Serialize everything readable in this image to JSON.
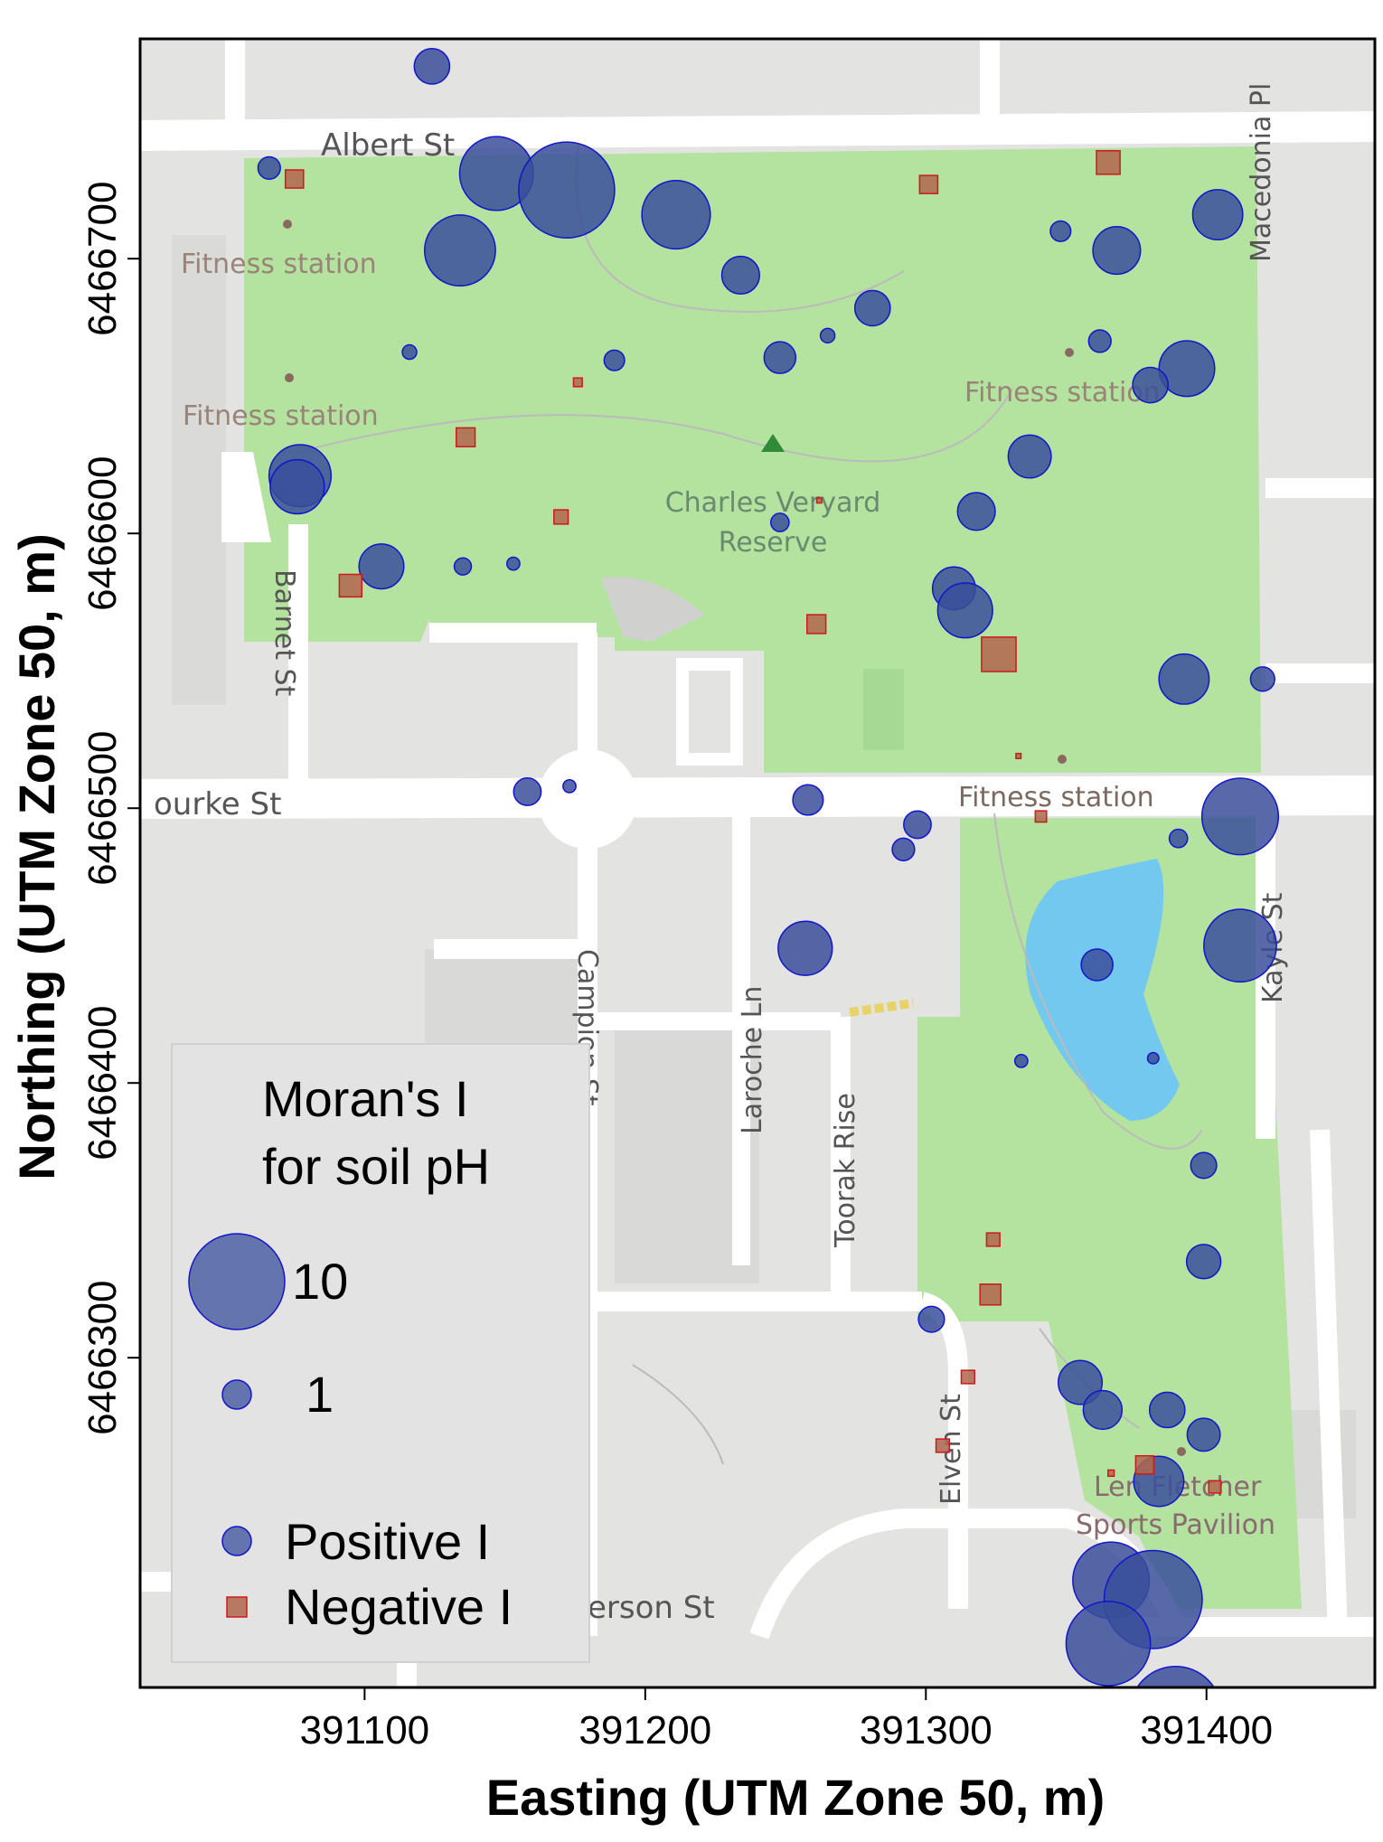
{
  "axes": {
    "x_title": "Easting (UTM Zone 50, m)",
    "y_title": "Northing (UTM Zone 50, m)",
    "x_ticks": [
      "391100",
      "391200",
      "391300",
      "391400"
    ],
    "y_ticks": [
      "6466300",
      "6466400",
      "6466500",
      "6466600",
      "6466700"
    ]
  },
  "map_labels": {
    "albert_st": "Albert St",
    "macedonia_pl": "Macedonia Pl",
    "fitness_1": "Fitness station",
    "fitness_2": "Fitness station",
    "fitness_3": "Fitness station",
    "fitness_4": "Fitness station",
    "reserve_1": "Charles Veryard",
    "reserve_2": "Reserve",
    "barnet_st": "Barnet St",
    "bourke_st": "ourke St",
    "campion_st": "Campion St",
    "laroche_ln": "Laroche Ln",
    "toorak_rise": "Toorak Rise",
    "kayle_st": "Kayle St",
    "elven_st": "Elven St",
    "pavilion_1": "Len Fletcher",
    "pavilion_2": "Sports Pavilion",
    "anderson_st": "erson St"
  },
  "legend": {
    "title_line1": "Moran's I",
    "title_line2": "for soil pH",
    "size_large_label": "10",
    "size_small_label": "1",
    "positive_label": "Positive I",
    "negative_label": "Negative I"
  },
  "colors": {
    "positive_fill": "#3a4f9a",
    "positive_stroke": "#1414cc",
    "negative_fill": "#b0664e",
    "negative_stroke": "#cc1a1a",
    "park": "#b5e3a1",
    "road": "#ffffff",
    "block": "#e4e4e2",
    "water": "#73c9ee"
  },
  "chart_data": {
    "type": "scatter",
    "xlabel": "Easting (UTM Zone 50, m)",
    "ylabel": "Northing (UTM Zone 50, m)",
    "xlim": [
      391020,
      391460
    ],
    "ylim": [
      6466180,
      6466780
    ],
    "size_variable": "Moran's I for soil pH",
    "series": [
      {
        "name": "Positive I",
        "points": [
          {
            "x": 391124,
            "y": 6466770,
            "i": 1.5
          },
          {
            "x": 391066,
            "y": 6466733,
            "i": 0.6
          },
          {
            "x": 391147,
            "y": 6466731,
            "i": 6.5
          },
          {
            "x": 391172,
            "y": 6466725,
            "i": 11
          },
          {
            "x": 391211,
            "y": 6466716,
            "i": 5.6
          },
          {
            "x": 391404,
            "y": 6466716,
            "i": 3
          },
          {
            "x": 391348,
            "y": 6466710,
            "i": 0.5
          },
          {
            "x": 391134,
            "y": 6466703,
            "i": 6
          },
          {
            "x": 391368,
            "y": 6466703,
            "i": 2.7
          },
          {
            "x": 391234,
            "y": 6466694,
            "i": 1.7
          },
          {
            "x": 391281,
            "y": 6466682,
            "i": 1.5
          },
          {
            "x": 391265,
            "y": 6466672,
            "i": 0.25
          },
          {
            "x": 391362,
            "y": 6466670,
            "i": 0.6
          },
          {
            "x": 391116,
            "y": 6466666,
            "i": 0.25
          },
          {
            "x": 391248,
            "y": 6466664,
            "i": 1.2
          },
          {
            "x": 391189,
            "y": 6466663,
            "i": 0.5
          },
          {
            "x": 391393,
            "y": 6466660,
            "i": 3.7
          },
          {
            "x": 391380,
            "y": 6466654,
            "i": 1.5
          },
          {
            "x": 391337,
            "y": 6466628,
            "i": 2.2
          },
          {
            "x": 391077,
            "y": 6466621,
            "i": 4.6
          },
          {
            "x": 391076,
            "y": 6466617,
            "i": 3.5
          },
          {
            "x": 391318,
            "y": 6466608,
            "i": 1.7
          },
          {
            "x": 391248,
            "y": 6466604,
            "i": 0.4
          },
          {
            "x": 391106,
            "y": 6466588,
            "i": 2.4
          },
          {
            "x": 391135,
            "y": 6466588,
            "i": 0.35
          },
          {
            "x": 391153,
            "y": 6466589,
            "i": 0.2
          },
          {
            "x": 391310,
            "y": 6466580,
            "i": 2.2
          },
          {
            "x": 391314,
            "y": 6466572,
            "i": 3.6
          },
          {
            "x": 391392,
            "y": 6466547,
            "i": 3
          },
          {
            "x": 391420,
            "y": 6466547,
            "i": 0.7
          },
          {
            "x": 391158,
            "y": 6466506,
            "i": 0.9
          },
          {
            "x": 391173,
            "y": 6466508,
            "i": 0.2
          },
          {
            "x": 391258,
            "y": 6466503,
            "i": 1.1
          },
          {
            "x": 391412,
            "y": 6466497,
            "i": 7
          },
          {
            "x": 391297,
            "y": 6466494,
            "i": 0.9
          },
          {
            "x": 391390,
            "y": 6466489,
            "i": 0.4
          },
          {
            "x": 391292,
            "y": 6466485,
            "i": 0.6
          },
          {
            "x": 391257,
            "y": 6466449,
            "i": 3.5
          },
          {
            "x": 391412,
            "y": 6466450,
            "i": 6.3
          },
          {
            "x": 391361,
            "y": 6466443,
            "i": 1.2
          },
          {
            "x": 391334,
            "y": 6466408,
            "i": 0.2
          },
          {
            "x": 391381,
            "y": 6466409,
            "i": 0.15
          },
          {
            "x": 391399,
            "y": 6466370,
            "i": 0.8
          },
          {
            "x": 391399,
            "y": 6466335,
            "i": 1.4
          },
          {
            "x": 391302,
            "y": 6466314,
            "i": 0.8
          },
          {
            "x": 391355,
            "y": 6466291,
            "i": 2.3
          },
          {
            "x": 391363,
            "y": 6466281,
            "i": 1.8
          },
          {
            "x": 391386,
            "y": 6466281,
            "i": 1.5
          },
          {
            "x": 391399,
            "y": 6466272,
            "i": 1.3
          },
          {
            "x": 391383,
            "y": 6466255,
            "i": 3
          },
          {
            "x": 391366,
            "y": 6466219,
            "i": 7
          },
          {
            "x": 391381,
            "y": 6466212,
            "i": 11.5
          },
          {
            "x": 391365,
            "y": 6466196,
            "i": 8.5
          },
          {
            "x": 391389,
            "y": 6466171,
            "i": 10
          }
        ]
      },
      {
        "name": "Negative I",
        "points": [
          {
            "x": 391075,
            "y": 6466729,
            "i": 1.3
          },
          {
            "x": 391301,
            "y": 6466727,
            "i": 1.3
          },
          {
            "x": 391365,
            "y": 6466735,
            "i": 2.2
          },
          {
            "x": 391176,
            "y": 6466655,
            "i": 0.3
          },
          {
            "x": 391136,
            "y": 6466635,
            "i": 1.4
          },
          {
            "x": 391170,
            "y": 6466606,
            "i": 0.8
          },
          {
            "x": 391095,
            "y": 6466581,
            "i": 2
          },
          {
            "x": 391262,
            "y": 6466612,
            "i": 0.1
          },
          {
            "x": 391261,
            "y": 6466567,
            "i": 1.4
          },
          {
            "x": 391326,
            "y": 6466556,
            "i": 4.7
          },
          {
            "x": 391333,
            "y": 6466519,
            "i": 0.1
          },
          {
            "x": 391341,
            "y": 6466497,
            "i": 0.5
          },
          {
            "x": 391324,
            "y": 6466343,
            "i": 0.7
          },
          {
            "x": 391323,
            "y": 6466323,
            "i": 1.7
          },
          {
            "x": 391315,
            "y": 6466293,
            "i": 0.7
          },
          {
            "x": 391306,
            "y": 6466268,
            "i": 0.7
          },
          {
            "x": 391378,
            "y": 6466261,
            "i": 1.3
          },
          {
            "x": 391366,
            "y": 6466258,
            "i": 0.15
          },
          {
            "x": 391403,
            "y": 6466253,
            "i": 0.6
          }
        ]
      }
    ]
  }
}
